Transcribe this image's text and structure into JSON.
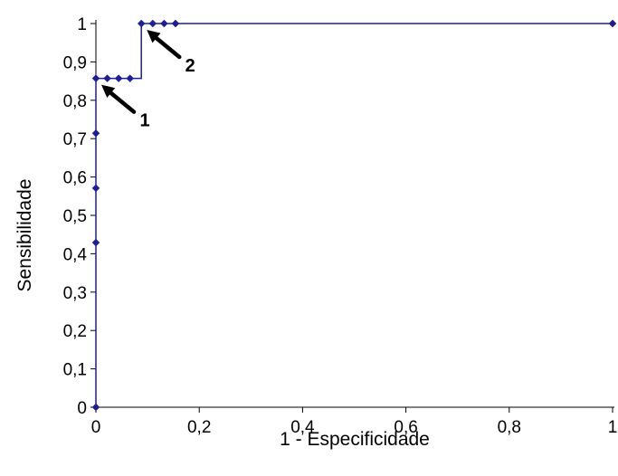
{
  "chart_data": {
    "type": "line",
    "title": "",
    "xlabel": "1 - Especificidade",
    "ylabel": "Sensibilidade",
    "xlim": [
      0,
      1
    ],
    "ylim": [
      0,
      1
    ],
    "x_ticks": [
      "0",
      "0,2",
      "0,4",
      "0,6",
      "0,8",
      "1"
    ],
    "y_ticks": [
      "0",
      "0,1",
      "0,2",
      "0,3",
      "0,4",
      "0,5",
      "0,6",
      "0,7",
      "0,8",
      "0,9",
      "1"
    ],
    "grid": false,
    "series": [
      {
        "x": [
          0,
          0,
          0,
          0,
          0,
          0.022,
          0.044,
          0.066,
          0.088,
          0.088,
          0.11,
          0.132,
          0.154,
          1
        ],
        "y": [
          0,
          0.429,
          0.571,
          0.714,
          0.857,
          0.857,
          0.857,
          0.857,
          0.857,
          1,
          1,
          1,
          1,
          1
        ],
        "markers": [
          1,
          1,
          1,
          1,
          1,
          1,
          1,
          1,
          0,
          1,
          1,
          1,
          1,
          1
        ]
      }
    ],
    "annotations": [
      {
        "text": "1",
        "x": 0,
        "y": 0.857
      },
      {
        "text": "2",
        "x": 0.088,
        "y": 1
      }
    ],
    "colors": {
      "series": "#1f1f8f",
      "axis": "#000000",
      "arrow": "#000000"
    }
  }
}
